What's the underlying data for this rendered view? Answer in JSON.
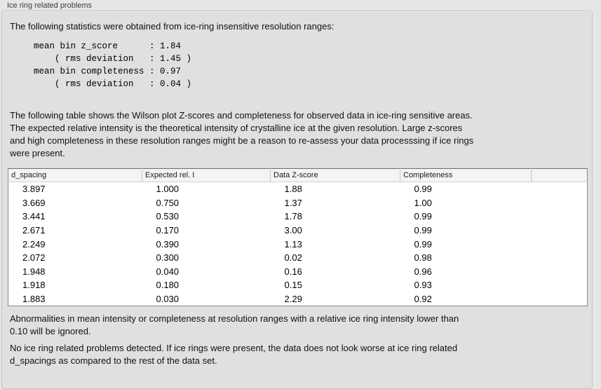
{
  "panel": {
    "title": "Ice ring related problems"
  },
  "intro": "The following statistics were obtained from ice-ring insensitive resolution ranges:",
  "stats_block": "mean bin z_score      : 1.84\n    ( rms deviation   : 1.45 )\nmean bin completeness : 0.97\n    ( rms deviation   : 0.04 )",
  "description": "The following table shows the Wilson plot Z-scores and completeness for observed data in ice-ring sensitive areas.\nThe expected relative intensity is the theoretical intensity of crystalline ice at the given resolution. Large z-scores\nand high completeness in these resolution ranges might be a reason to re-assess your data processsing if ice rings\nwere present.",
  "table": {
    "headers": [
      "d_spacing",
      "Expected rel. I",
      "Data Z-score",
      "Completeness",
      ""
    ],
    "rows": [
      [
        "3.897",
        "1.000",
        "1.88",
        "0.99"
      ],
      [
        "3.669",
        "0.750",
        "1.37",
        "1.00"
      ],
      [
        "3.441",
        "0.530",
        "1.78",
        "0.99"
      ],
      [
        "2.671",
        "0.170",
        "3.00",
        "0.99"
      ],
      [
        "2.249",
        "0.390",
        "1.13",
        "0.99"
      ],
      [
        "2.072",
        "0.300",
        "0.02",
        "0.98"
      ],
      [
        "1.948",
        "0.040",
        "0.16",
        "0.96"
      ],
      [
        "1.918",
        "0.180",
        "0.15",
        "0.93"
      ],
      [
        "1.883",
        "0.030",
        "2.29",
        "0.92"
      ]
    ]
  },
  "note_ignore": "Abnormalities in mean intensity or completeness at resolution ranges with a relative ice ring intensity lower than\n0.10 will be ignored.",
  "conclusion": "No ice ring related problems detected. If ice rings were present, the data does not look worse at ice ring related\nd_spacings as compared to the rest of the data set.",
  "colors": {
    "page_bg": "#e6e6e6",
    "panel_bg": "#e0e0e0",
    "panel_border": "#c2c2c2",
    "table_bg": "#ffffff",
    "table_border": "#8a8a8a",
    "table_header_bg": "#f4f4f4",
    "title_text": "#3c3c3c",
    "body_text": "#111111"
  }
}
